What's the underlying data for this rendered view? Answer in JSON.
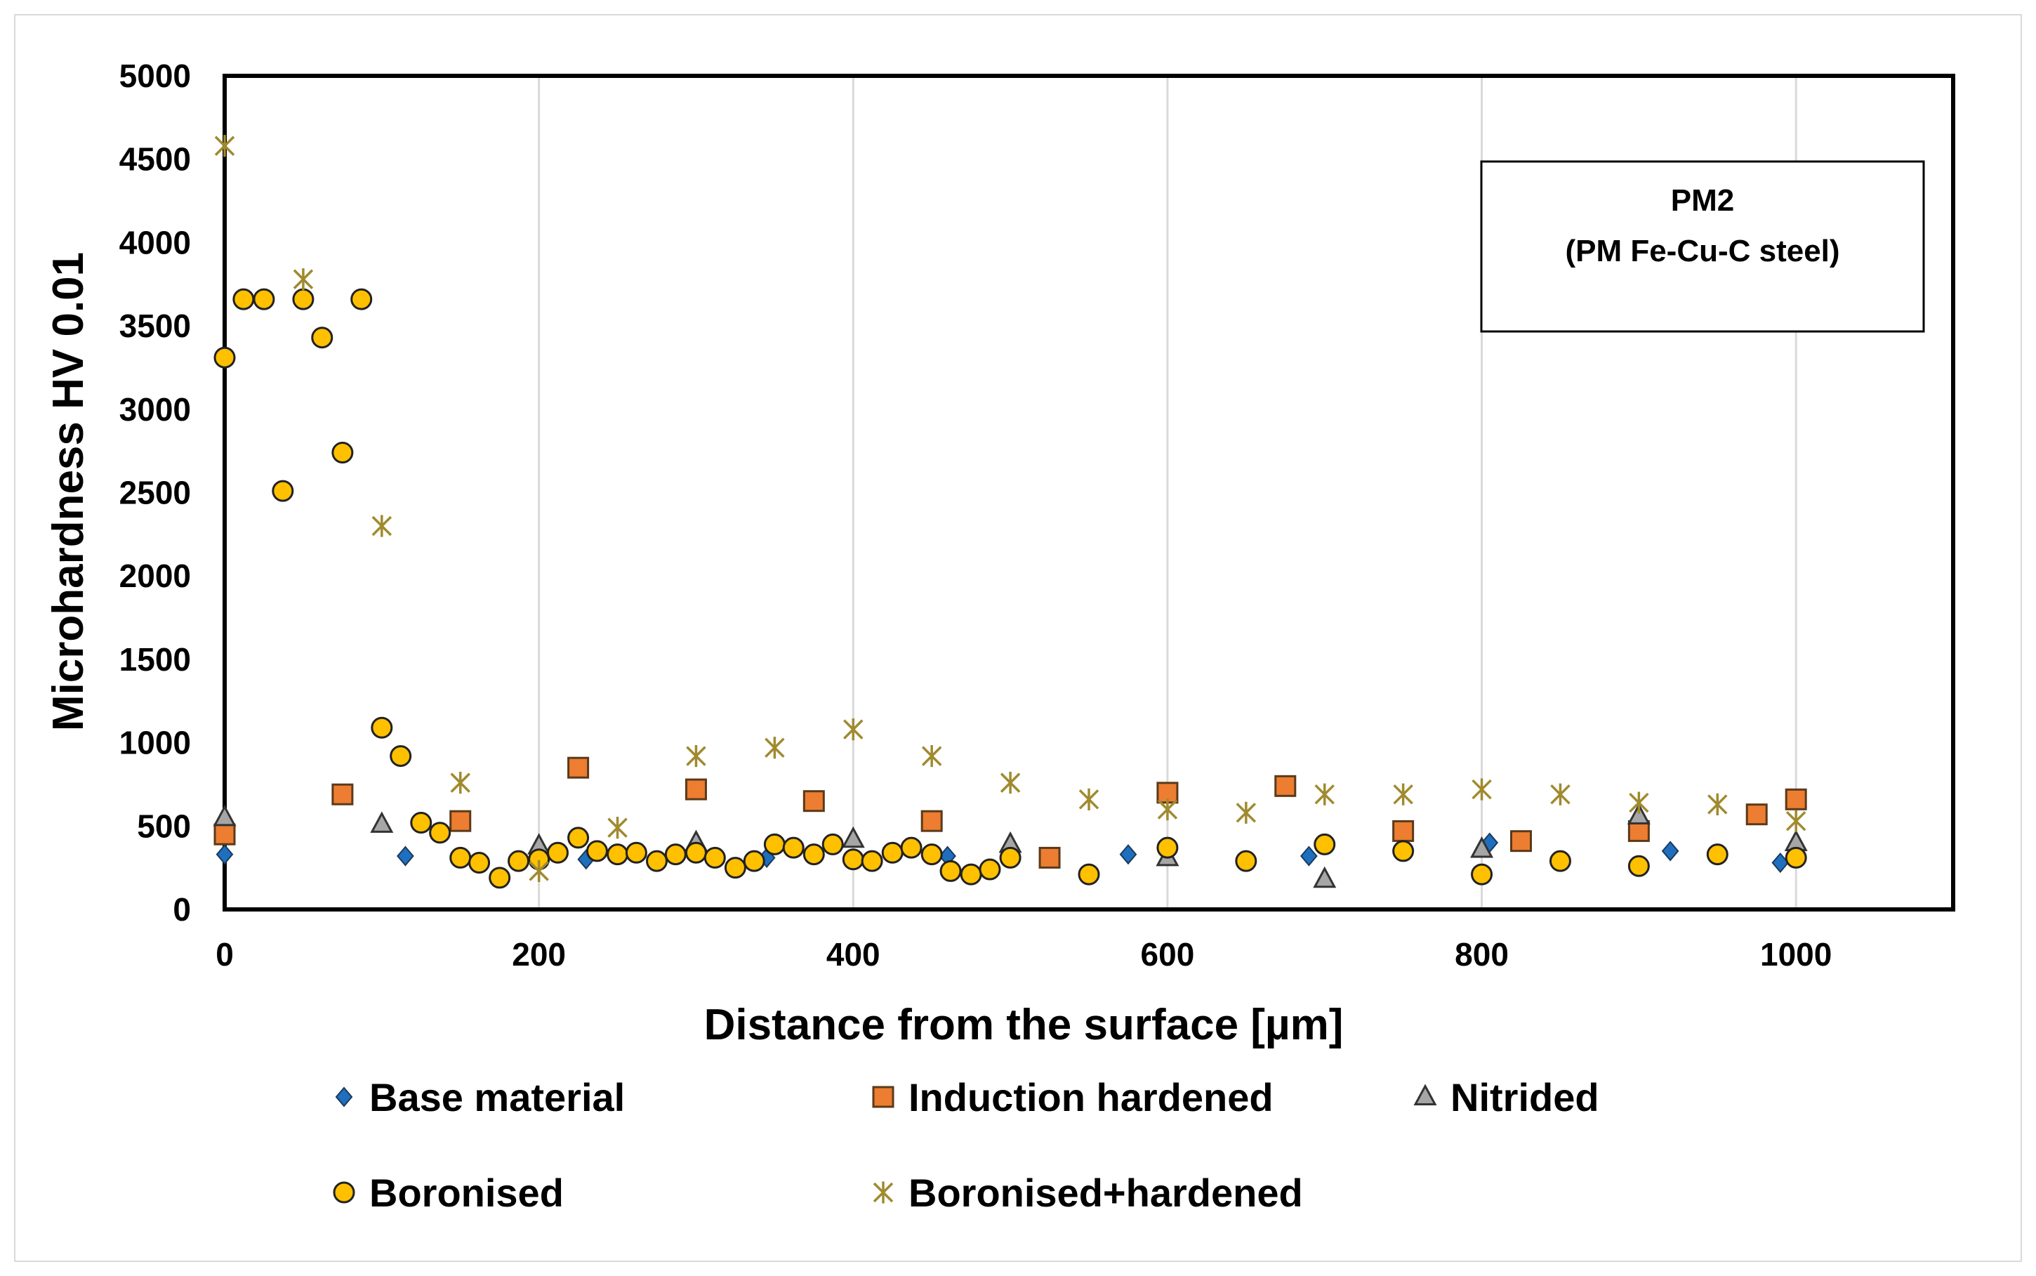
{
  "chart_data": {
    "type": "scatter",
    "title": "",
    "xlabel": "Distance from the surface [µm]",
    "ylabel": "Microhardness HV 0.01",
    "xlim": [
      0,
      1100
    ],
    "ylim": [
      0,
      5000
    ],
    "xticks": [
      0,
      200,
      400,
      600,
      800,
      1000
    ],
    "yticks": [
      0,
      500,
      1000,
      1500,
      2000,
      2500,
      3000,
      3500,
      4000,
      4500,
      5000
    ],
    "grid": "vertical",
    "legend_position": "bottom",
    "annotation": {
      "line1": "PM2",
      "line2": "(PM Fe-Cu-C steel)"
    },
    "series": [
      {
        "name": "Base material",
        "marker": "diamond",
        "color": "#1f6fbf",
        "points": [
          [
            0,
            330
          ],
          [
            115,
            320
          ],
          [
            230,
            300
          ],
          [
            345,
            310
          ],
          [
            460,
            320
          ],
          [
            575,
            330
          ],
          [
            690,
            320
          ],
          [
            805,
            400
          ],
          [
            920,
            350
          ],
          [
            990,
            280
          ]
        ]
      },
      {
        "name": "Induction hardened",
        "marker": "square",
        "color": "#ed7d31",
        "points": [
          [
            0,
            450
          ],
          [
            75,
            690
          ],
          [
            150,
            530
          ],
          [
            225,
            850
          ],
          [
            300,
            720
          ],
          [
            375,
            650
          ],
          [
            450,
            530
          ],
          [
            525,
            310
          ],
          [
            600,
            700
          ],
          [
            675,
            740
          ],
          [
            750,
            470
          ],
          [
            825,
            410
          ],
          [
            900,
            470
          ],
          [
            975,
            570
          ],
          [
            1000,
            660
          ]
        ]
      },
      {
        "name": "Nitrided",
        "marker": "triangle",
        "color": "#a6a6a6",
        "points": [
          [
            0,
            550
          ],
          [
            100,
            510
          ],
          [
            200,
            380
          ],
          [
            300,
            400
          ],
          [
            400,
            420
          ],
          [
            500,
            390
          ],
          [
            600,
            310
          ],
          [
            700,
            180
          ],
          [
            800,
            360
          ],
          [
            900,
            560
          ],
          [
            1000,
            400
          ]
        ]
      },
      {
        "name": "Boronised",
        "marker": "circle",
        "color": "#ffc000",
        "points": [
          [
            0,
            3310
          ],
          [
            12,
            3660
          ],
          [
            25,
            3660
          ],
          [
            37,
            2510
          ],
          [
            50,
            3660
          ],
          [
            62,
            3430
          ],
          [
            75,
            2740
          ],
          [
            87,
            3660
          ],
          [
            100,
            1090
          ],
          [
            112,
            920
          ],
          [
            125,
            520
          ],
          [
            137,
            460
          ],
          [
            150,
            310
          ],
          [
            162,
            280
          ],
          [
            175,
            190
          ],
          [
            187,
            290
          ],
          [
            200,
            300
          ],
          [
            212,
            340
          ],
          [
            225,
            430
          ],
          [
            237,
            350
          ],
          [
            250,
            330
          ],
          [
            262,
            340
          ],
          [
            275,
            290
          ],
          [
            287,
            330
          ],
          [
            300,
            340
          ],
          [
            312,
            310
          ],
          [
            325,
            250
          ],
          [
            337,
            290
          ],
          [
            350,
            390
          ],
          [
            362,
            370
          ],
          [
            375,
            330
          ],
          [
            387,
            390
          ],
          [
            400,
            300
          ],
          [
            412,
            290
          ],
          [
            425,
            340
          ],
          [
            437,
            370
          ],
          [
            450,
            330
          ],
          [
            462,
            230
          ],
          [
            475,
            210
          ],
          [
            487,
            240
          ],
          [
            500,
            310
          ],
          [
            550,
            210
          ],
          [
            600,
            370
          ],
          [
            650,
            290
          ],
          [
            700,
            390
          ],
          [
            750,
            350
          ],
          [
            800,
            210
          ],
          [
            850,
            290
          ],
          [
            900,
            260
          ],
          [
            950,
            330
          ],
          [
            1000,
            310
          ]
        ]
      },
      {
        "name": "Boronised+hardened",
        "marker": "star",
        "color": "#a08a2e",
        "points": [
          [
            0,
            4580
          ],
          [
            50,
            3780
          ],
          [
            100,
            2300
          ],
          [
            150,
            760
          ],
          [
            200,
            230
          ],
          [
            250,
            490
          ],
          [
            300,
            920
          ],
          [
            350,
            970
          ],
          [
            400,
            1080
          ],
          [
            450,
            920
          ],
          [
            500,
            760
          ],
          [
            550,
            660
          ],
          [
            600,
            600
          ],
          [
            650,
            580
          ],
          [
            700,
            690
          ],
          [
            750,
            690
          ],
          [
            800,
            720
          ],
          [
            850,
            690
          ],
          [
            900,
            640
          ],
          [
            950,
            630
          ],
          [
            1000,
            530
          ]
        ]
      }
    ]
  }
}
